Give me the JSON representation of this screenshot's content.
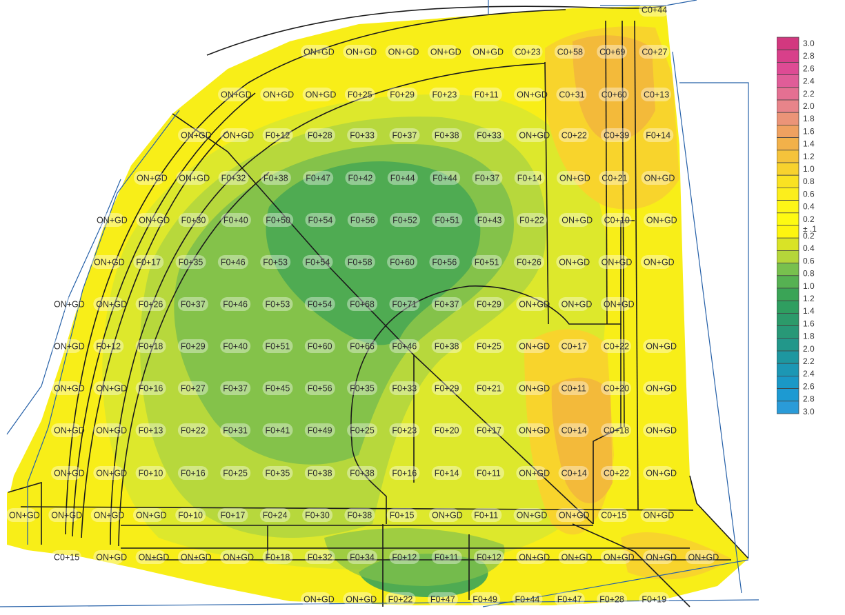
{
  "grid_labels": [
    [
      "C0+44"
    ],
    [
      "ON+GD",
      "ON+GD",
      "ON+GD",
      "ON+GD",
      "ON+GD",
      "C0+23",
      "C0+58",
      "C0+69",
      "C0+27"
    ],
    [
      "ON+GD",
      "ON+GD",
      "ON+GD",
      "F0+25",
      "F0+29",
      "F0+23",
      "F0+11",
      "ON+GD",
      "C0+31",
      "C0+60",
      "C0+13"
    ],
    [
      "ON+GD",
      "ON+GD",
      "F0+12",
      "F0+28",
      "F0+33",
      "F0+37",
      "F0+38",
      "F0+33",
      "ON+GD",
      "C0+22",
      "C0+39",
      "F0+14"
    ],
    [
      "ON+GD",
      "ON+GD",
      "F0+32",
      "F0+38",
      "F0+47",
      "F0+42",
      "F0+44",
      "F0+44",
      "F0+37",
      "F0+14",
      "ON+GD",
      "C0+21",
      "ON+GD"
    ],
    [
      "ON+GD",
      "ON+GD",
      "F0+30",
      "F0+40",
      "F0+50",
      "F0+54",
      "F0+56",
      "F0+52",
      "F0+51",
      "F0+43",
      "F0+22",
      "ON+GD",
      "C0+10",
      "ON+GD"
    ],
    [
      "ON+GD",
      "F0+17",
      "F0+35",
      "F0+46",
      "F0+53",
      "F0+54",
      "F0+58",
      "F0+60",
      "F0+56",
      "F0+51",
      "F0+26",
      "ON+GD",
      "ON+GD",
      "ON+GD"
    ],
    [
      "ON+GD",
      "ON+GD",
      "F0+26",
      "F0+37",
      "F0+46",
      "F0+53",
      "F0+54",
      "F0+68",
      "F0+71",
      "F0+37",
      "F0+29",
      "ON+GD",
      "ON+GD",
      "ON+GD"
    ],
    [
      "ON+GD",
      "F0+12",
      "F0+18",
      "F0+29",
      "F0+40",
      "F0+51",
      "F0+60",
      "F0+66",
      "F0+46",
      "F0+38",
      "F0+25",
      "ON+GD",
      "C0+17",
      "C0+22",
      "ON+GD"
    ],
    [
      "ON+GD",
      "ON+GD",
      "F0+16",
      "F0+27",
      "F0+37",
      "F0+45",
      "F0+56",
      "F0+35",
      "F0+33",
      "F0+29",
      "F0+21",
      "ON+GD",
      "C0+11",
      "C0+20",
      "ON+GD"
    ],
    [
      "ON+GD",
      "ON+GD",
      "F0+13",
      "F0+22",
      "F0+31",
      "F0+41",
      "F0+49",
      "F0+25",
      "F0+23",
      "F0+20",
      "F0+17",
      "ON+GD",
      "C0+14",
      "C0+18",
      "ON+GD"
    ],
    [
      "ON+GD",
      "ON+GD",
      "F0+10",
      "F0+16",
      "F0+25",
      "F0+35",
      "F0+38",
      "F0+38",
      "F0+16",
      "F0+14",
      "F0+11",
      "ON+GD",
      "C0+14",
      "C0+22",
      "ON+GD"
    ],
    [
      "ON+GD",
      "ON+GD",
      "ON+GD",
      "ON+GD",
      "F0+10",
      "F0+17",
      "F0+24",
      "F0+30",
      "F0+38",
      "F0+15",
      "ON+GD",
      "F0+11",
      "ON+GD",
      "ON+GD",
      "C0+15",
      "ON+GD"
    ],
    [
      "C0+15",
      "ON+GD",
      "ON+GD",
      "ON+GD",
      "ON+GD",
      "F0+18",
      "F0+32",
      "F0+34",
      "F0+12",
      "F0+11",
      "F0+12",
      "ON+GD",
      "ON+GD",
      "ON+GD",
      "ON+GD",
      "ON+GD"
    ],
    [
      "ON+GD",
      "ON+GD",
      "F0+22",
      "F0+47",
      "F0+49",
      "F0+44",
      "F0+47",
      "F0+28",
      "F0+19"
    ]
  ],
  "legend": {
    "cut_labels": [
      "3.0",
      "2.8",
      "2.6",
      "2.4",
      "2.2",
      "2.0",
      "1.8",
      "1.6",
      "1.4",
      "1.2",
      "1.0",
      "0.8",
      "0.6",
      "0.4",
      "0.2"
    ],
    "mid_label": "± .1",
    "fill_labels": [
      "0.2",
      "0.4",
      "0.6",
      "0.8",
      "1.0",
      "1.2",
      "1.4",
      "1.6",
      "1.8",
      "2.0",
      "2.2",
      "2.4",
      "2.6",
      "2.8",
      "3.0"
    ],
    "colors": [
      "#d2387f",
      "#d8408a",
      "#de4b94",
      "#e05d98",
      "#e47092",
      "#e8848a",
      "#eb9478",
      "#efa160",
      "#f2b14a",
      "#f5c33b",
      "#f8d22e",
      "#fae222",
      "#fcee1c",
      "#fdf617",
      "#fefa12",
      "#fef510",
      "#d9e326",
      "#b5d63a",
      "#78c04e",
      "#56b152",
      "#3aa456",
      "#2f9e60",
      "#2c9a6a",
      "#289877",
      "#22978a",
      "#1e97a0",
      "#1c97b4",
      "#1a98c6",
      "#1d9ad2",
      "#2a9bd8"
    ]
  },
  "zone_colors": {
    "yellow": "#f8ee18",
    "yellow_green": "#dde82c",
    "light_green": "#b7d83c",
    "mid_green": "#84c24a",
    "dark_green": "#4fab52",
    "light_orange": "#f8d42c",
    "orange": "#f3ba3a"
  }
}
